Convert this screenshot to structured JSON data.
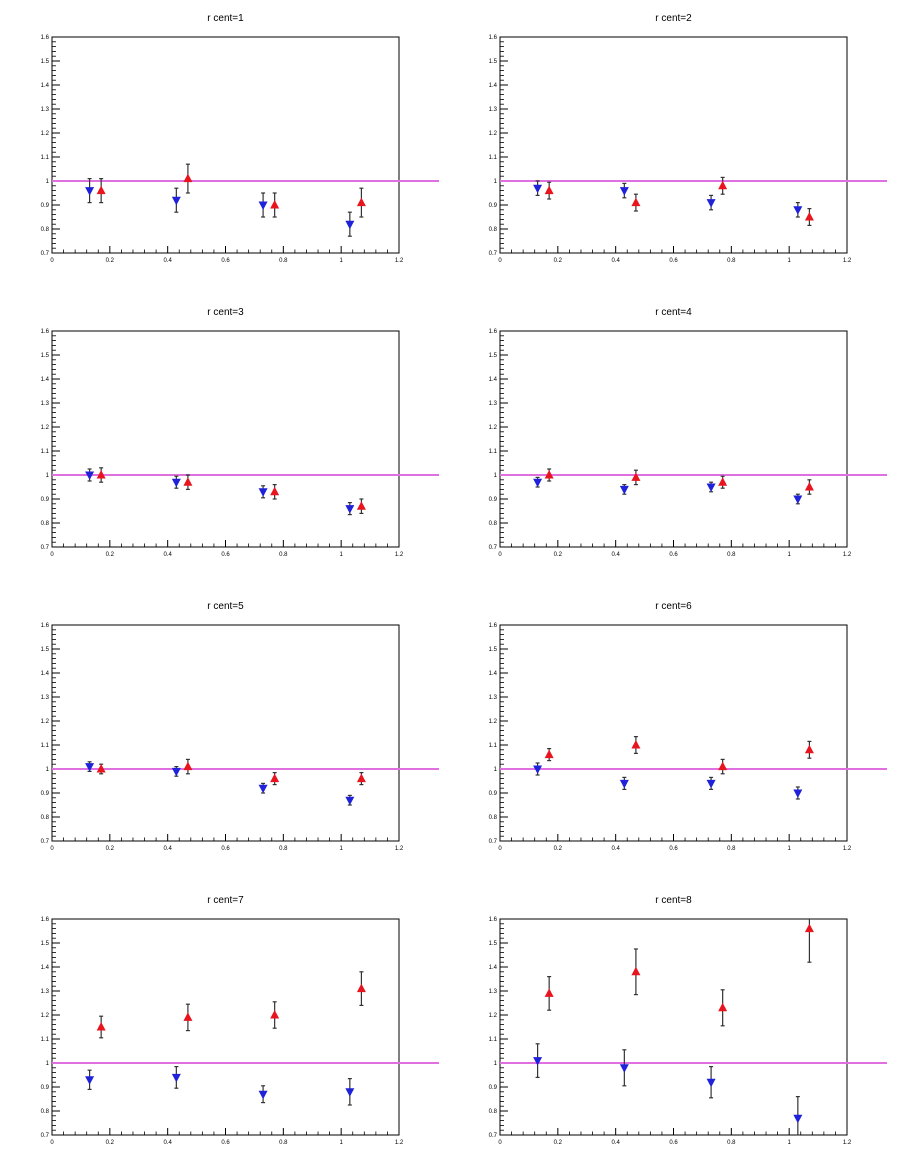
{
  "colors": {
    "series1": "#1f22d8",
    "series2": "#e8141e",
    "reference": "#e070e0",
    "errorbar": "#333333"
  },
  "chart_data": [
    {
      "type": "scatter",
      "title": "r cent=1",
      "xlim": [
        0,
        1.2
      ],
      "ylim": [
        0.7,
        1.6
      ],
      "reference_y": 1.0,
      "x_ticks": [
        "0",
        "0.2",
        "0.4",
        "0.6",
        "0.8",
        "1",
        "1.2"
      ],
      "y_ticks": [
        "0.7",
        "0.8",
        "0.9",
        "1",
        "1.1",
        "1.2",
        "1.3",
        "1.4",
        "1.5",
        "1.6"
      ],
      "series": [
        {
          "marker": "triangle-down",
          "color": "#1f22d8",
          "points": [
            [
              0.13,
              0.96,
              0.05
            ],
            [
              0.43,
              0.92,
              0.05
            ],
            [
              0.73,
              0.9,
              0.05
            ],
            [
              1.03,
              0.82,
              0.05
            ]
          ]
        },
        {
          "marker": "triangle-up",
          "color": "#e8141e",
          "points": [
            [
              0.17,
              0.96,
              0.05
            ],
            [
              0.47,
              1.01,
              0.06
            ],
            [
              0.77,
              0.9,
              0.05
            ],
            [
              1.07,
              0.91,
              0.06
            ]
          ]
        }
      ]
    },
    {
      "type": "scatter",
      "title": "r cent=2",
      "xlim": [
        0,
        1.2
      ],
      "ylim": [
        0.7,
        1.6
      ],
      "reference_y": 1.0,
      "x_ticks": [
        "0",
        "0.2",
        "0.4",
        "0.6",
        "0.8",
        "1",
        "1.2"
      ],
      "y_ticks": [
        "0.7",
        "0.8",
        "0.9",
        "1",
        "1.1",
        "1.2",
        "1.3",
        "1.4",
        "1.5",
        "1.6"
      ],
      "series": [
        {
          "marker": "triangle-down",
          "color": "#1f22d8",
          "points": [
            [
              0.13,
              0.97,
              0.03
            ],
            [
              0.43,
              0.96,
              0.03
            ],
            [
              0.73,
              0.91,
              0.03
            ],
            [
              1.03,
              0.88,
              0.03
            ]
          ]
        },
        {
          "marker": "triangle-up",
          "color": "#e8141e",
          "points": [
            [
              0.17,
              0.96,
              0.035
            ],
            [
              0.47,
              0.91,
              0.035
            ],
            [
              0.77,
              0.98,
              0.035
            ],
            [
              1.07,
              0.85,
              0.035
            ]
          ]
        }
      ]
    },
    {
      "type": "scatter",
      "title": "r cent=3",
      "xlim": [
        0,
        1.2
      ],
      "ylim": [
        0.7,
        1.6
      ],
      "reference_y": 1.0,
      "x_ticks": [
        "0",
        "0.2",
        "0.4",
        "0.6",
        "0.8",
        "1",
        "1.2"
      ],
      "y_ticks": [
        "0.7",
        "0.8",
        "0.9",
        "1",
        "1.1",
        "1.2",
        "1.3",
        "1.4",
        "1.5",
        "1.6"
      ],
      "series": [
        {
          "marker": "triangle-down",
          "color": "#1f22d8",
          "points": [
            [
              0.13,
              1.0,
              0.025
            ],
            [
              0.43,
              0.97,
              0.025
            ],
            [
              0.73,
              0.93,
              0.025
            ],
            [
              1.03,
              0.86,
              0.025
            ]
          ]
        },
        {
          "marker": "triangle-up",
          "color": "#e8141e",
          "points": [
            [
              0.17,
              1.0,
              0.03
            ],
            [
              0.47,
              0.97,
              0.03
            ],
            [
              0.77,
              0.93,
              0.03
            ],
            [
              1.07,
              0.87,
              0.03
            ]
          ]
        }
      ]
    },
    {
      "type": "scatter",
      "title": "r cent=4",
      "xlim": [
        0,
        1.2
      ],
      "ylim": [
        0.7,
        1.6
      ],
      "reference_y": 1.0,
      "x_ticks": [
        "0",
        "0.2",
        "0.4",
        "0.6",
        "0.8",
        "1",
        "1.2"
      ],
      "y_ticks": [
        "0.7",
        "0.8",
        "0.9",
        "1",
        "1.1",
        "1.2",
        "1.3",
        "1.4",
        "1.5",
        "1.6"
      ],
      "series": [
        {
          "marker": "triangle-down",
          "color": "#1f22d8",
          "points": [
            [
              0.13,
              0.97,
              0.02
            ],
            [
              0.43,
              0.94,
              0.02
            ],
            [
              0.73,
              0.95,
              0.02
            ],
            [
              1.03,
              0.9,
              0.02
            ]
          ]
        },
        {
          "marker": "triangle-up",
          "color": "#e8141e",
          "points": [
            [
              0.17,
              1.0,
              0.025
            ],
            [
              0.47,
              0.99,
              0.03
            ],
            [
              0.77,
              0.97,
              0.025
            ],
            [
              1.07,
              0.95,
              0.03
            ]
          ]
        }
      ]
    },
    {
      "type": "scatter",
      "title": "r cent=5",
      "xlim": [
        0,
        1.2
      ],
      "ylim": [
        0.7,
        1.6
      ],
      "reference_y": 1.0,
      "x_ticks": [
        "0",
        "0.2",
        "0.4",
        "0.6",
        "0.8",
        "1",
        "1.2"
      ],
      "y_ticks": [
        "0.7",
        "0.8",
        "0.9",
        "1",
        "1.1",
        "1.2",
        "1.3",
        "1.4",
        "1.5",
        "1.6"
      ],
      "series": [
        {
          "marker": "triangle-down",
          "color": "#1f22d8",
          "points": [
            [
              0.13,
              1.01,
              0.02
            ],
            [
              0.43,
              0.99,
              0.02
            ],
            [
              0.73,
              0.92,
              0.02
            ],
            [
              1.03,
              0.87,
              0.02
            ]
          ]
        },
        {
          "marker": "triangle-up",
          "color": "#e8141e",
          "points": [
            [
              0.17,
              1.0,
              0.02
            ],
            [
              0.47,
              1.01,
              0.03
            ],
            [
              0.77,
              0.96,
              0.025
            ],
            [
              1.07,
              0.96,
              0.025
            ]
          ]
        }
      ]
    },
    {
      "type": "scatter",
      "title": "r cent=6",
      "xlim": [
        0,
        1.2
      ],
      "ylim": [
        0.7,
        1.6
      ],
      "reference_y": 1.0,
      "x_ticks": [
        "0",
        "0.2",
        "0.4",
        "0.6",
        "0.8",
        "1",
        "1.2"
      ],
      "y_ticks": [
        "0.7",
        "0.8",
        "0.9",
        "1",
        "1.1",
        "1.2",
        "1.3",
        "1.4",
        "1.5",
        "1.6"
      ],
      "series": [
        {
          "marker": "triangle-down",
          "color": "#1f22d8",
          "points": [
            [
              0.13,
              1.0,
              0.025
            ],
            [
              0.43,
              0.94,
              0.025
            ],
            [
              0.73,
              0.94,
              0.025
            ],
            [
              1.03,
              0.9,
              0.025
            ]
          ]
        },
        {
          "marker": "triangle-up",
          "color": "#e8141e",
          "points": [
            [
              0.17,
              1.06,
              0.025
            ],
            [
              0.47,
              1.1,
              0.035
            ],
            [
              0.77,
              1.01,
              0.03
            ],
            [
              1.07,
              1.08,
              0.035
            ]
          ]
        }
      ]
    },
    {
      "type": "scatter",
      "title": "r cent=7",
      "xlim": [
        0,
        1.2
      ],
      "ylim": [
        0.7,
        1.6
      ],
      "reference_y": 1.0,
      "x_ticks": [
        "0",
        "0.2",
        "0.4",
        "0.6",
        "0.8",
        "1",
        "1.2"
      ],
      "y_ticks": [
        "0.7",
        "0.8",
        "0.9",
        "1",
        "1.1",
        "1.2",
        "1.3",
        "1.4",
        "1.5",
        "1.6"
      ],
      "series": [
        {
          "marker": "triangle-down",
          "color": "#1f22d8",
          "points": [
            [
              0.13,
              0.93,
              0.04
            ],
            [
              0.43,
              0.94,
              0.045
            ],
            [
              0.73,
              0.87,
              0.035
            ],
            [
              1.03,
              0.88,
              0.055
            ]
          ]
        },
        {
          "marker": "triangle-up",
          "color": "#e8141e",
          "points": [
            [
              0.17,
              1.15,
              0.045
            ],
            [
              0.47,
              1.19,
              0.055
            ],
            [
              0.77,
              1.2,
              0.055
            ],
            [
              1.07,
              1.31,
              0.07
            ]
          ]
        }
      ]
    },
    {
      "type": "scatter",
      "title": "r cent=8",
      "xlim": [
        0,
        1.2
      ],
      "ylim": [
        0.7,
        1.6
      ],
      "reference_y": 1.0,
      "x_ticks": [
        "0",
        "0.2",
        "0.4",
        "0.6",
        "0.8",
        "1",
        "1.2"
      ],
      "y_ticks": [
        "0.7",
        "0.8",
        "0.9",
        "1",
        "1.1",
        "1.2",
        "1.3",
        "1.4",
        "1.5",
        "1.6"
      ],
      "series": [
        {
          "marker": "triangle-down",
          "color": "#1f22d8",
          "points": [
            [
              0.13,
              1.01,
              0.07
            ],
            [
              0.43,
              0.98,
              0.075
            ],
            [
              0.73,
              0.92,
              0.065
            ],
            [
              1.03,
              0.77,
              0.09
            ]
          ]
        },
        {
          "marker": "triangle-up",
          "color": "#e8141e",
          "points": [
            [
              0.17,
              1.29,
              0.07
            ],
            [
              0.47,
              1.38,
              0.095
            ],
            [
              0.77,
              1.23,
              0.075
            ],
            [
              1.07,
              1.56,
              0.14
            ]
          ]
        }
      ]
    }
  ]
}
